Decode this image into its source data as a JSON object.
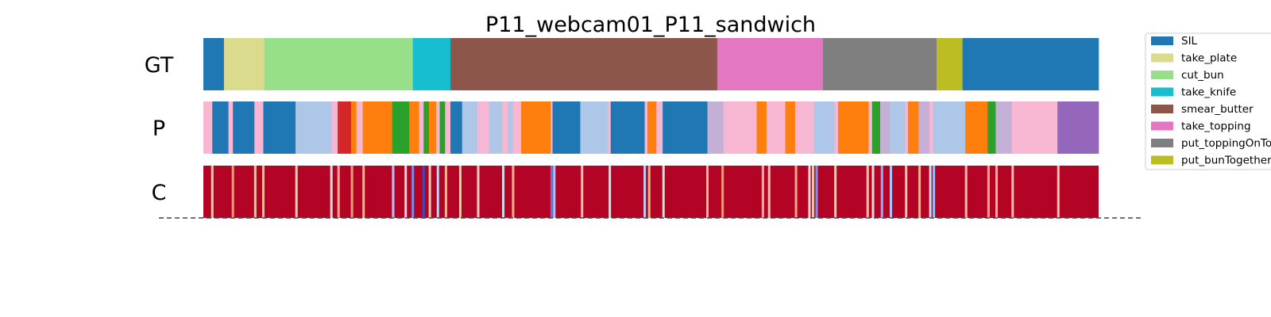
{
  "chart_data": {
    "type": "segmentation",
    "title": "P11_webcam01_P11_sandwich",
    "x_range": [
      0,
      1
    ],
    "rows": [
      {
        "label": "GT",
        "segments": [
          {
            "start": 0.0,
            "end": 0.023,
            "action": "SIL",
            "color": "#1f77b4"
          },
          {
            "start": 0.023,
            "end": 0.068,
            "action": "take_plate",
            "color": "#dbdb8d"
          },
          {
            "start": 0.068,
            "end": 0.234,
            "action": "cut_bun",
            "color": "#98df8a"
          },
          {
            "start": 0.234,
            "end": 0.276,
            "action": "take_knife",
            "color": "#17becf"
          },
          {
            "start": 0.276,
            "end": 0.574,
            "action": "smear_butter",
            "color": "#8c564b"
          },
          {
            "start": 0.574,
            "end": 0.692,
            "action": "take_topping",
            "color": "#e377c2"
          },
          {
            "start": 0.692,
            "end": 0.819,
            "action": "put_toppingOnTop",
            "color": "#7f7f7f"
          },
          {
            "start": 0.819,
            "end": 0.848,
            "action": "put_bunTogether",
            "color": "#bcbd22"
          },
          {
            "start": 0.848,
            "end": 1.0,
            "action": "SIL",
            "color": "#1f77b4"
          }
        ]
      },
      {
        "label": "P",
        "segments": [
          {
            "start": 0.0,
            "end": 0.01,
            "color": "#f7b6d2"
          },
          {
            "start": 0.01,
            "end": 0.028,
            "color": "#1f77b4"
          },
          {
            "start": 0.028,
            "end": 0.033,
            "color": "#f7b6d2"
          },
          {
            "start": 0.033,
            "end": 0.057,
            "color": "#1f77b4"
          },
          {
            "start": 0.057,
            "end": 0.067,
            "color": "#f7b6d2"
          },
          {
            "start": 0.067,
            "end": 0.103,
            "color": "#1f77b4"
          },
          {
            "start": 0.103,
            "end": 0.143,
            "color": "#aec7e8"
          },
          {
            "start": 0.143,
            "end": 0.15,
            "color": "#f7b6d2"
          },
          {
            "start": 0.15,
            "end": 0.165,
            "color": "#d62728"
          },
          {
            "start": 0.165,
            "end": 0.171,
            "color": "#ff7f0e"
          },
          {
            "start": 0.171,
            "end": 0.178,
            "color": "#f7b6d2"
          },
          {
            "start": 0.178,
            "end": 0.211,
            "color": "#ff7f0e"
          },
          {
            "start": 0.211,
            "end": 0.23,
            "color": "#2ca02c"
          },
          {
            "start": 0.23,
            "end": 0.241,
            "color": "#ff7f0e"
          },
          {
            "start": 0.241,
            "end": 0.246,
            "color": "#f7b6d2"
          },
          {
            "start": 0.246,
            "end": 0.252,
            "color": "#2ca02c"
          },
          {
            "start": 0.252,
            "end": 0.26,
            "color": "#ff7f0e"
          },
          {
            "start": 0.26,
            "end": 0.264,
            "color": "#f7b6d2"
          },
          {
            "start": 0.264,
            "end": 0.27,
            "color": "#2ca02c"
          },
          {
            "start": 0.27,
            "end": 0.276,
            "color": "#f7b6d2"
          },
          {
            "start": 0.276,
            "end": 0.289,
            "color": "#1f77b4"
          },
          {
            "start": 0.289,
            "end": 0.306,
            "color": "#aec7e8"
          },
          {
            "start": 0.306,
            "end": 0.319,
            "color": "#f7b6d2"
          },
          {
            "start": 0.319,
            "end": 0.334,
            "color": "#aec7e8"
          },
          {
            "start": 0.334,
            "end": 0.34,
            "color": "#f7b6d2"
          },
          {
            "start": 0.34,
            "end": 0.346,
            "color": "#aec7e8"
          },
          {
            "start": 0.346,
            "end": 0.355,
            "color": "#f7b6d2"
          },
          {
            "start": 0.355,
            "end": 0.388,
            "color": "#ff7f0e"
          },
          {
            "start": 0.388,
            "end": 0.39,
            "color": "#f7b6d2"
          },
          {
            "start": 0.39,
            "end": 0.421,
            "color": "#1f77b4"
          },
          {
            "start": 0.421,
            "end": 0.452,
            "color": "#aec7e8"
          },
          {
            "start": 0.452,
            "end": 0.455,
            "color": "#f7b6d2"
          },
          {
            "start": 0.455,
            "end": 0.493,
            "color": "#1f77b4"
          },
          {
            "start": 0.493,
            "end": 0.496,
            "color": "#f7b6d2"
          },
          {
            "start": 0.496,
            "end": 0.506,
            "color": "#ff7f0e"
          },
          {
            "start": 0.506,
            "end": 0.513,
            "color": "#f7b6d2"
          },
          {
            "start": 0.513,
            "end": 0.563,
            "color": "#1f77b4"
          },
          {
            "start": 0.563,
            "end": 0.581,
            "color": "#c5b0d5"
          },
          {
            "start": 0.581,
            "end": 0.618,
            "color": "#f7b6d2"
          },
          {
            "start": 0.618,
            "end": 0.629,
            "color": "#ff7f0e"
          },
          {
            "start": 0.629,
            "end": 0.65,
            "color": "#f7b6d2"
          },
          {
            "start": 0.65,
            "end": 0.661,
            "color": "#ff7f0e"
          },
          {
            "start": 0.661,
            "end": 0.682,
            "color": "#f7b6d2"
          },
          {
            "start": 0.682,
            "end": 0.705,
            "color": "#aec7e8"
          },
          {
            "start": 0.705,
            "end": 0.709,
            "color": "#f7b6d2"
          },
          {
            "start": 0.709,
            "end": 0.743,
            "color": "#ff7f0e"
          },
          {
            "start": 0.743,
            "end": 0.747,
            "color": "#f7b6d2"
          },
          {
            "start": 0.747,
            "end": 0.756,
            "color": "#2ca02c"
          },
          {
            "start": 0.756,
            "end": 0.767,
            "color": "#c5b0d5"
          },
          {
            "start": 0.767,
            "end": 0.784,
            "color": "#aec7e8"
          },
          {
            "start": 0.784,
            "end": 0.787,
            "color": "#f7b6d2"
          },
          {
            "start": 0.787,
            "end": 0.799,
            "color": "#ff7f0e"
          },
          {
            "start": 0.799,
            "end": 0.811,
            "color": "#c5b0d5"
          },
          {
            "start": 0.811,
            "end": 0.815,
            "color": "#f7b6d2"
          },
          {
            "start": 0.815,
            "end": 0.851,
            "color": "#aec7e8"
          },
          {
            "start": 0.851,
            "end": 0.876,
            "color": "#ff7f0e"
          },
          {
            "start": 0.876,
            "end": 0.885,
            "color": "#2ca02c"
          },
          {
            "start": 0.885,
            "end": 0.903,
            "color": "#c5b0d5"
          },
          {
            "start": 0.903,
            "end": 0.954,
            "color": "#f7b6d2"
          },
          {
            "start": 0.954,
            "end": 1.0,
            "color": "#9467bd"
          }
        ]
      },
      {
        "label": "C",
        "base_color": "#b40426",
        "highlights": [
          {
            "x": 0.01,
            "color": "#f5c4ac"
          },
          {
            "x": 0.033,
            "color": "#f4987a"
          },
          {
            "x": 0.058,
            "color": "#f6bfa6"
          },
          {
            "x": 0.067,
            "color": "#f7b599"
          },
          {
            "x": 0.104,
            "color": "#f2cbb7"
          },
          {
            "x": 0.143,
            "color": "#e0dbd8"
          },
          {
            "x": 0.151,
            "color": "#f7ac8e"
          },
          {
            "x": 0.166,
            "color": "#f49a7b"
          },
          {
            "x": 0.179,
            "color": "#f7b093"
          },
          {
            "x": 0.212,
            "color": "#aac7fd"
          },
          {
            "x": 0.226,
            "color": "#dcdddd"
          },
          {
            "x": 0.234,
            "color": "#6f92f3"
          },
          {
            "x": 0.246,
            "color": "#3b4cc0"
          },
          {
            "x": 0.253,
            "color": "#f2cbb7"
          },
          {
            "x": 0.262,
            "color": "#c0d4f5"
          },
          {
            "x": 0.271,
            "color": "#f7b599"
          },
          {
            "x": 0.287,
            "color": "#f5c4ac"
          },
          {
            "x": 0.307,
            "color": "#eed0c0"
          },
          {
            "x": 0.335,
            "color": "#d4dbe6"
          },
          {
            "x": 0.346,
            "color": "#f7af91"
          },
          {
            "x": 0.389,
            "color": "#5d7ce6"
          },
          {
            "x": 0.392,
            "color": "#aac7fd"
          },
          {
            "x": 0.423,
            "color": "#f4c5ad"
          },
          {
            "x": 0.454,
            "color": "#dcdddd"
          },
          {
            "x": 0.493,
            "color": "#b9d0f9"
          },
          {
            "x": 0.498,
            "color": "#f7ac8e"
          },
          {
            "x": 0.514,
            "color": "#e1dad6"
          },
          {
            "x": 0.563,
            "color": "#f7b89c"
          },
          {
            "x": 0.58,
            "color": "#f4987a"
          },
          {
            "x": 0.625,
            "color": "#f7b093"
          },
          {
            "x": 0.632,
            "color": "#f5c2aa"
          },
          {
            "x": 0.662,
            "color": "#f7a889"
          },
          {
            "x": 0.677,
            "color": "#dfdbd9"
          },
          {
            "x": 0.681,
            "color": "#f6bfa6"
          },
          {
            "x": 0.685,
            "color": "#7396f5"
          },
          {
            "x": 0.706,
            "color": "#f5c4ac"
          },
          {
            "x": 0.742,
            "color": "#f4c5ad"
          },
          {
            "x": 0.748,
            "color": "#dddcdc"
          },
          {
            "x": 0.758,
            "color": "#8caffe"
          },
          {
            "x": 0.768,
            "color": "#aac7fd"
          },
          {
            "x": 0.785,
            "color": "#f3c7b1"
          },
          {
            "x": 0.8,
            "color": "#f7b093"
          },
          {
            "x": 0.812,
            "color": "#cdd9ec"
          },
          {
            "x": 0.816,
            "color": "#9ebeff"
          },
          {
            "x": 0.852,
            "color": "#f6bea4"
          },
          {
            "x": 0.877,
            "color": "#f7a98b"
          },
          {
            "x": 0.886,
            "color": "#f7b396"
          },
          {
            "x": 0.904,
            "color": "#f5c1a9"
          },
          {
            "x": 0.955,
            "color": "#f2cbb7"
          }
        ]
      }
    ],
    "legend": {
      "placement": "right",
      "entries": [
        {
          "label": "SIL",
          "color": "#1f77b4"
        },
        {
          "label": "take_plate",
          "color": "#dbdb8d"
        },
        {
          "label": "cut_bun",
          "color": "#98df8a"
        },
        {
          "label": "take_knife",
          "color": "#17becf"
        },
        {
          "label": "smear_butter",
          "color": "#8c564b"
        },
        {
          "label": "take_topping",
          "color": "#e377c2"
        },
        {
          "label": "put_toppingOnTo",
          "color": "#7f7f7f"
        },
        {
          "label": "put_bunTogether",
          "color": "#bcbd22"
        }
      ]
    },
    "grid": false
  }
}
